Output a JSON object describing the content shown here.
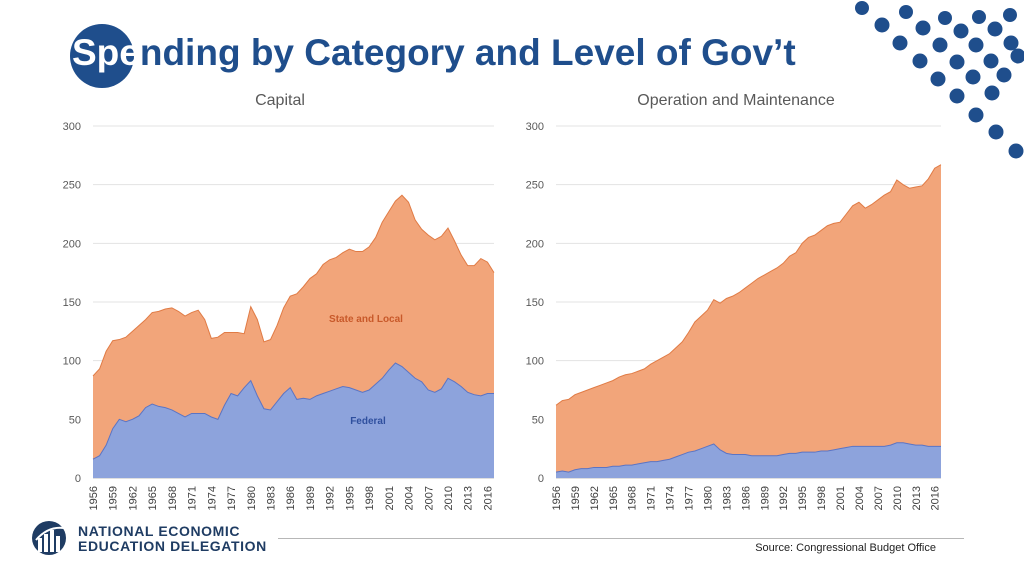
{
  "slide": {
    "title_highlight": "Spe",
    "title_rest": "nding by Category and Level of Gov’t",
    "source": "Source: Congressional Budget Office",
    "logo_line1": "NATIONAL ECONOMIC",
    "logo_line2": "EDUCATION DELEGATION"
  },
  "colors": {
    "title": "#1f4e8c",
    "state_local": "#f2a57a",
    "state_local_line": "#e07b45",
    "federal": "#8da3dc",
    "federal_line": "#5b74c4",
    "label_state": "#c8592a",
    "label_federal": "#2f4f9e"
  },
  "chart_data": [
    {
      "type": "area",
      "title": "Capital",
      "ylim": [
        0,
        300
      ],
      "yticks": [
        0,
        50,
        100,
        150,
        200,
        250,
        300
      ],
      "xlim": [
        1956,
        2017
      ],
      "xticks": [
        1956,
        1959,
        1962,
        1965,
        1968,
        1971,
        1974,
        1977,
        1980,
        1983,
        1986,
        1989,
        1992,
        1995,
        1998,
        2001,
        2004,
        2007,
        2010,
        2013,
        2016
      ],
      "stacked": true,
      "annotations": [
        "State and Local",
        "Federal"
      ],
      "years": [
        1956,
        1957,
        1958,
        1959,
        1960,
        1961,
        1962,
        1963,
        1964,
        1965,
        1966,
        1967,
        1968,
        1969,
        1970,
        1971,
        1972,
        1973,
        1974,
        1975,
        1976,
        1977,
        1978,
        1979,
        1980,
        1981,
        1982,
        1983,
        1984,
        1985,
        1986,
        1987,
        1988,
        1989,
        1990,
        1991,
        1992,
        1993,
        1994,
        1995,
        1996,
        1997,
        1998,
        1999,
        2000,
        2001,
        2002,
        2003,
        2004,
        2005,
        2006,
        2007,
        2008,
        2009,
        2010,
        2011,
        2012,
        2013,
        2014,
        2015,
        2016,
        2017
      ],
      "series": [
        {
          "name": "Federal",
          "values": [
            16,
            19,
            28,
            42,
            50,
            48,
            50,
            53,
            60,
            63,
            61,
            60,
            58,
            55,
            52,
            55,
            55,
            55,
            52,
            50,
            62,
            72,
            70,
            77,
            83,
            70,
            59,
            58,
            65,
            72,
            77,
            67,
            68,
            67,
            70,
            72,
            74,
            76,
            78,
            77,
            75,
            73,
            75,
            80,
            85,
            92,
            98,
            95,
            90,
            85,
            82,
            75,
            73,
            76,
            85,
            82,
            78,
            73,
            71,
            70,
            72,
            72
          ]
        },
        {
          "name": "State and Local",
          "values": [
            71,
            74,
            80,
            75,
            68,
            72,
            75,
            77,
            75,
            78,
            81,
            84,
            87,
            87,
            86,
            86,
            88,
            80,
            67,
            70,
            62,
            52,
            54,
            46,
            63,
            65,
            57,
            60,
            65,
            73,
            78,
            90,
            95,
            103,
            104,
            110,
            112,
            112,
            114,
            118,
            118,
            120,
            122,
            125,
            133,
            135,
            138,
            146,
            145,
            135,
            130,
            132,
            130,
            130,
            128,
            120,
            112,
            108,
            110,
            117,
            112,
            103
          ]
        }
      ]
    },
    {
      "type": "area",
      "title": "Operation and Maintenance",
      "ylim": [
        0,
        300
      ],
      "yticks": [
        0,
        50,
        100,
        150,
        200,
        250,
        300
      ],
      "xlim": [
        1956,
        2017
      ],
      "xticks": [
        1956,
        1959,
        1962,
        1965,
        1968,
        1971,
        1974,
        1977,
        1980,
        1983,
        1986,
        1989,
        1992,
        1995,
        1998,
        2001,
        2004,
        2007,
        2010,
        2013,
        2016
      ],
      "stacked": true,
      "years": [
        1956,
        1957,
        1958,
        1959,
        1960,
        1961,
        1962,
        1963,
        1964,
        1965,
        1966,
        1967,
        1968,
        1969,
        1970,
        1971,
        1972,
        1973,
        1974,
        1975,
        1976,
        1977,
        1978,
        1979,
        1980,
        1981,
        1982,
        1983,
        1984,
        1985,
        1986,
        1987,
        1988,
        1989,
        1990,
        1991,
        1992,
        1993,
        1994,
        1995,
        1996,
        1997,
        1998,
        1999,
        2000,
        2001,
        2002,
        2003,
        2004,
        2005,
        2006,
        2007,
        2008,
        2009,
        2010,
        2011,
        2012,
        2013,
        2014,
        2015,
        2016,
        2017
      ],
      "series": [
        {
          "name": "Federal",
          "values": [
            5,
            6,
            5,
            7,
            8,
            8,
            9,
            9,
            9,
            10,
            10,
            11,
            11,
            12,
            13,
            14,
            14,
            15,
            16,
            18,
            20,
            22,
            23,
            25,
            27,
            29,
            24,
            21,
            20,
            20,
            20,
            19,
            19,
            19,
            19,
            19,
            20,
            21,
            21,
            22,
            22,
            22,
            23,
            23,
            24,
            25,
            26,
            27,
            27,
            27,
            27,
            27,
            27,
            28,
            30,
            30,
            29,
            28,
            28,
            27,
            27,
            27
          ]
        },
        {
          "name": "State and Local",
          "values": [
            57,
            60,
            62,
            64,
            65,
            67,
            68,
            70,
            72,
            73,
            76,
            77,
            78,
            79,
            80,
            83,
            86,
            88,
            90,
            93,
            96,
            102,
            110,
            113,
            116,
            123,
            125,
            132,
            135,
            138,
            142,
            147,
            151,
            154,
            157,
            160,
            163,
            168,
            171,
            178,
            183,
            185,
            188,
            192,
            193,
            193,
            199,
            205,
            208,
            203,
            206,
            210,
            214,
            216,
            224,
            220,
            218,
            220,
            221,
            228,
            237,
            240
          ]
        }
      ]
    }
  ]
}
